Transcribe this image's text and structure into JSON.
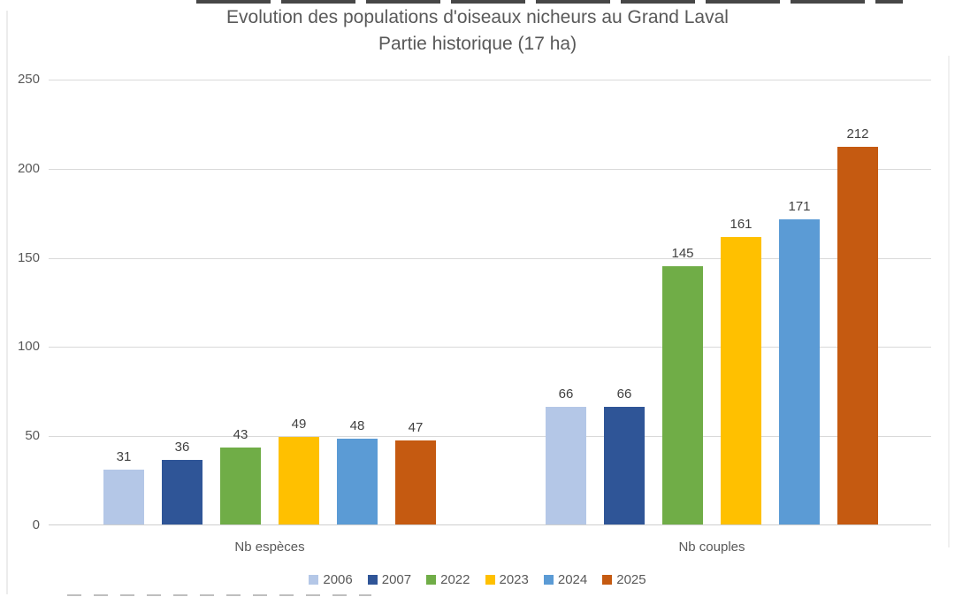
{
  "chart_data": {
    "type": "bar",
    "title": "Evolution des populations d'oiseaux nicheurs au Grand Laval",
    "subtitle": "Partie historique (17 ha)",
    "categories": [
      "Nb espèces",
      "Nb couples"
    ],
    "series": [
      {
        "name": "2006",
        "color": "#b4c7e7",
        "values": [
          31,
          66
        ]
      },
      {
        "name": "2007",
        "color": "#2f5597",
        "values": [
          36,
          66
        ]
      },
      {
        "name": "2022",
        "color": "#70ad47",
        "values": [
          43,
          145
        ]
      },
      {
        "name": "2023",
        "color": "#ffc000",
        "values": [
          49,
          161
        ]
      },
      {
        "name": "2024",
        "color": "#5b9bd5",
        "values": [
          48,
          171
        ]
      },
      {
        "name": "2025",
        "color": "#c55a11",
        "values": [
          47,
          212
        ]
      }
    ],
    "ylim": [
      0,
      250
    ],
    "yticks": [
      0,
      50,
      100,
      150,
      200,
      250
    ],
    "grid": true,
    "data_labels": true,
    "legend_position": "bottom",
    "colors": {
      "title_text": "#595959",
      "axis_text": "#595959",
      "value_label_text": "#404040",
      "gridline": "#d9d9d9",
      "background": "#ffffff"
    }
  }
}
